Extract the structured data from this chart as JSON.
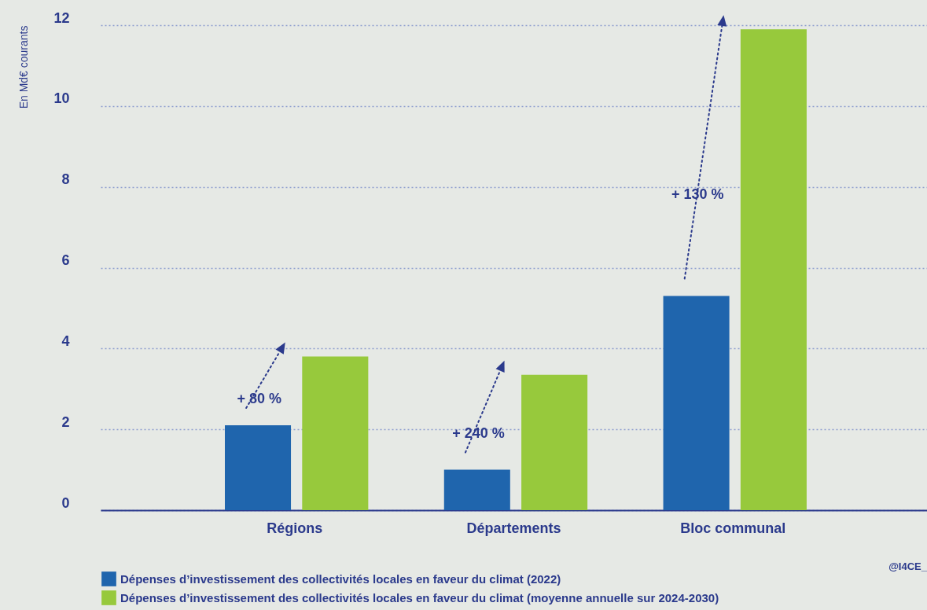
{
  "chart_data": {
    "type": "bar",
    "ylabel": "En Md€ courants",
    "categories": [
      "Régions",
      "Départements",
      "Bloc communal"
    ],
    "series": [
      {
        "name": "Dépenses d’investissement des collectivités locales en faveur du climat (2022)",
        "color": "#1f65ad",
        "values": [
          2.1,
          1.0,
          5.3
        ]
      },
      {
        "name": "Dépenses d’investissement des collectivités locales en faveur du climat (moyenne annuelle sur 2024-2030)",
        "color": "#97c93c",
        "values": [
          3.8,
          3.35,
          11.9
        ]
      }
    ],
    "ylim": [
      0,
      12
    ],
    "yticks": [
      0,
      2,
      4,
      6,
      8,
      10,
      12
    ],
    "grid": "y",
    "legend": "bottom",
    "annotations": [
      "+ 80 %",
      "+ 240 %",
      "+ 130 %",
      "@I4CE_"
    ]
  }
}
